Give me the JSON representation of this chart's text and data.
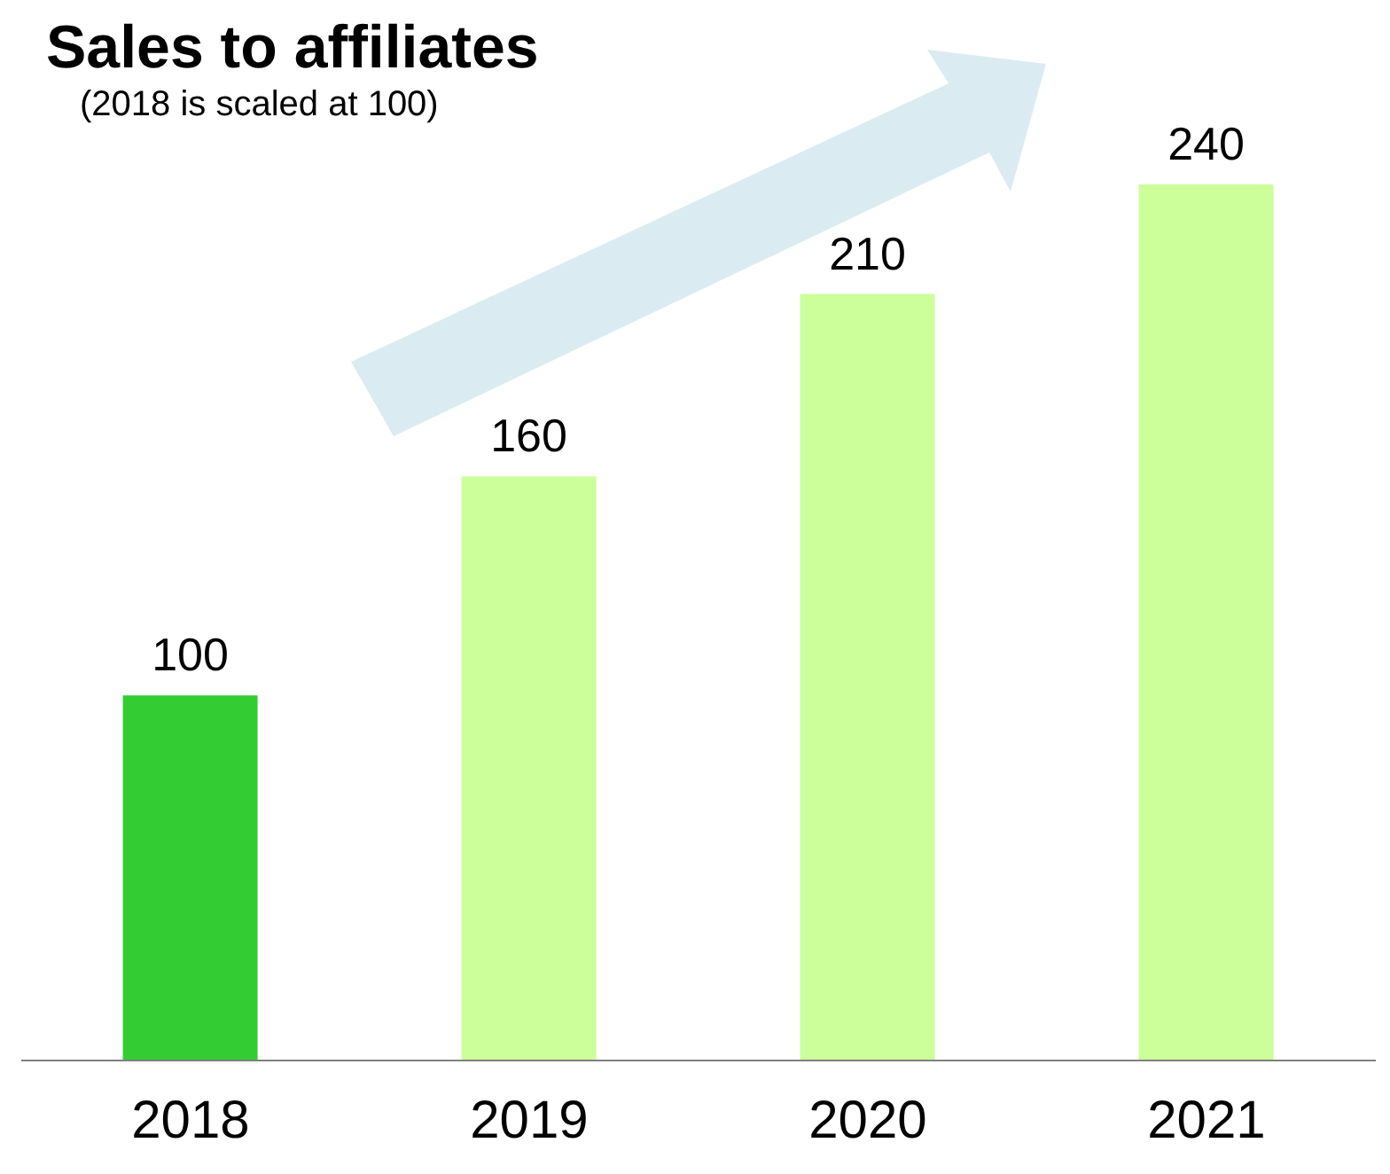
{
  "chart_data": {
    "type": "bar",
    "title": "Sales to affiliates",
    "subtitle": "(2018 is scaled at 100)",
    "categories": [
      "2018",
      "2019",
      "2020",
      "2021"
    ],
    "values": [
      100,
      160,
      210,
      240
    ],
    "colors": [
      "#33cc33",
      "#ccff99",
      "#ccff99",
      "#ccff99"
    ],
    "data_labels": true,
    "tick_labels": "x"
  }
}
